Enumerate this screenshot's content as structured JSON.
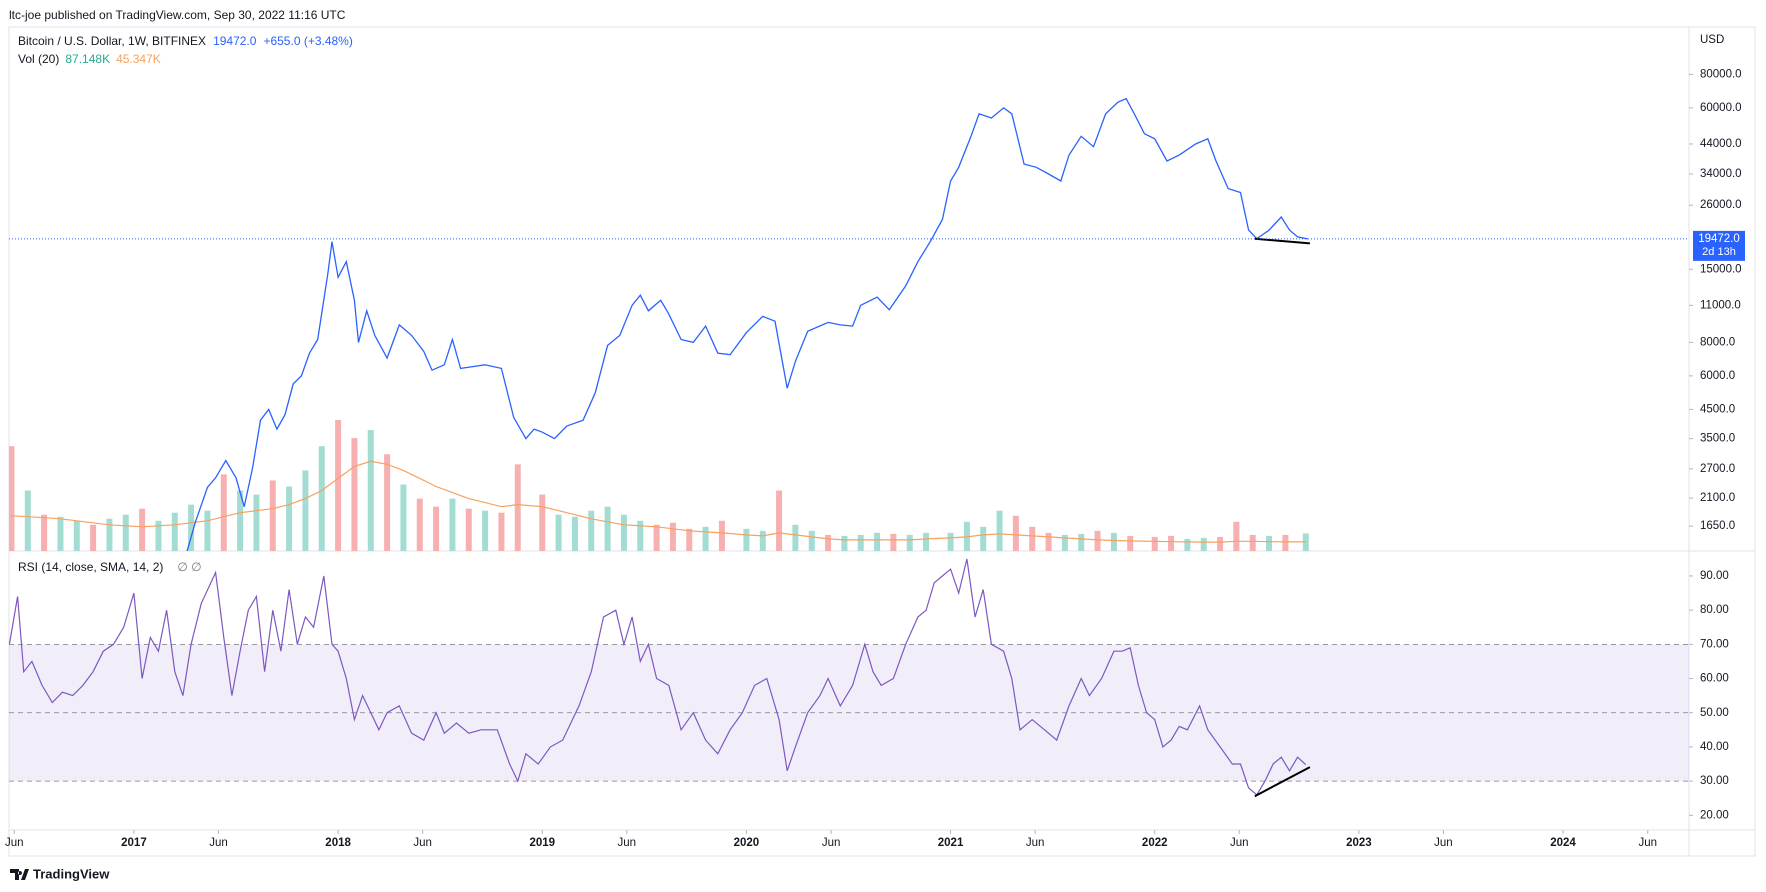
{
  "header": {
    "publisher": "ltc-joe published on TradingView.com, Sep 30, 2022 11:16 UTC",
    "brand": "TradingView"
  },
  "chart_data": [
    {
      "type": "line",
      "title": "Bitcoin / U.S. Dollar, 1W, BITFINEX",
      "color": "#2962ff",
      "log_scale": true,
      "y_unit": "USD",
      "last_value": 19472,
      "last_value_label": "19472.0",
      "change_label": "+655.0 (+3.48%)",
      "countdown": "2d 13h",
      "xlim": [
        2016.388,
        2024.617
      ],
      "ylim": [
        1333,
        120200
      ],
      "yticks": [
        {
          "value": 1650,
          "label": "1650.0"
        },
        {
          "value": 2100,
          "label": "2100.0"
        },
        {
          "value": 2700,
          "label": "2700.0"
        },
        {
          "value": 3500,
          "label": "3500.0"
        },
        {
          "value": 4500,
          "label": "4500.0"
        },
        {
          "value": 6000,
          "label": "6000.0"
        },
        {
          "value": 8000,
          "label": "8000.0"
        },
        {
          "value": 11000,
          "label": "11000.0"
        },
        {
          "value": 15000,
          "label": "15000.0"
        },
        {
          "value": 26000,
          "label": "26000.0"
        },
        {
          "value": 34000,
          "label": "34000.0"
        },
        {
          "value": 44000,
          "label": "44000.0"
        },
        {
          "value": 60000,
          "label": "60000.0"
        },
        {
          "value": 80000,
          "label": "80000.0"
        }
      ],
      "x": [
        2017.25,
        2017.3,
        2017.36,
        2017.4,
        2017.45,
        2017.5,
        2017.54,
        2017.58,
        2017.62,
        2017.66,
        2017.7,
        2017.74,
        2017.78,
        2017.82,
        2017.86,
        2017.9,
        2017.95,
        2017.97,
        2018.0,
        2018.04,
        2018.08,
        2018.1,
        2018.14,
        2018.18,
        2018.24,
        2018.3,
        2018.36,
        2018.42,
        2018.46,
        2018.52,
        2018.56,
        2018.6,
        2018.66,
        2018.72,
        2018.8,
        2018.86,
        2018.92,
        2018.96,
        2019.0,
        2019.06,
        2019.12,
        2019.2,
        2019.26,
        2019.32,
        2019.38,
        2019.44,
        2019.48,
        2019.52,
        2019.58,
        2019.62,
        2019.68,
        2019.74,
        2019.8,
        2019.86,
        2019.92,
        2020.0,
        2020.08,
        2020.14,
        2020.2,
        2020.24,
        2020.3,
        2020.4,
        2020.46,
        2020.52,
        2020.56,
        2020.64,
        2020.7,
        2020.78,
        2020.84,
        2020.9,
        2020.96,
        2021.0,
        2021.04,
        2021.1,
        2021.14,
        2021.2,
        2021.26,
        2021.3,
        2021.36,
        2021.42,
        2021.48,
        2021.54,
        2021.58,
        2021.64,
        2021.7,
        2021.76,
        2021.82,
        2021.86,
        2021.9,
        2021.95,
        2022.0,
        2022.06,
        2022.12,
        2022.2,
        2022.26,
        2022.3,
        2022.36,
        2022.42,
        2022.46,
        2022.5,
        2022.56,
        2022.62,
        2022.66,
        2022.7,
        2022.75
      ],
      "values": [
        1250,
        1700,
        2300,
        2500,
        2900,
        2500,
        1950,
        2700,
        4100,
        4500,
        3800,
        4300,
        5600,
        6000,
        7300,
        8200,
        14500,
        19000,
        14000,
        16000,
        11500,
        8000,
        10500,
        8500,
        7000,
        9300,
        8500,
        7400,
        6300,
        6600,
        8200,
        6400,
        6500,
        6600,
        6400,
        4200,
        3500,
        3800,
        3700,
        3500,
        3900,
        4100,
        5200,
        7800,
        8500,
        11000,
        12000,
        10500,
        11500,
        10200,
        8200,
        8000,
        9200,
        7300,
        7200,
        8700,
        10000,
        9600,
        5400,
        6800,
        8800,
        9500,
        9300,
        9200,
        11000,
        11800,
        10600,
        13000,
        16000,
        19000,
        23000,
        32000,
        36000,
        47000,
        57000,
        55000,
        60000,
        57000,
        37000,
        36000,
        34000,
        32000,
        40000,
        47000,
        43000,
        57000,
        63000,
        65000,
        57000,
        48000,
        46000,
        38000,
        40000,
        44000,
        46000,
        38000,
        30000,
        29000,
        21000,
        19500,
        21000,
        23500,
        21000,
        19800,
        19472
      ],
      "volume": {
        "name": "Vol (20)",
        "ylim": [
          0,
          780
        ],
        "last_label": "87.148K",
        "label_color": "#22ab94",
        "x": [
          2016.4,
          2016.48,
          2016.56,
          2016.64,
          2016.72,
          2016.8,
          2016.88,
          2016.96,
          2017.04,
          2017.12,
          2017.2,
          2017.28,
          2017.36,
          2017.44,
          2017.52,
          2017.6,
          2017.68,
          2017.76,
          2017.84,
          2017.92,
          2018.0,
          2018.08,
          2018.16,
          2018.24,
          2018.32,
          2018.4,
          2018.48,
          2018.56,
          2018.64,
          2018.72,
          2018.8,
          2018.88,
          2019.0,
          2019.08,
          2019.16,
          2019.24,
          2019.32,
          2019.4,
          2019.48,
          2019.56,
          2019.64,
          2019.72,
          2019.8,
          2019.88,
          2020.0,
          2020.08,
          2020.16,
          2020.24,
          2020.32,
          2020.4,
          2020.48,
          2020.56,
          2020.64,
          2020.72,
          2020.8,
          2020.88,
          2021.0,
          2021.08,
          2021.16,
          2021.24,
          2021.32,
          2021.4,
          2021.48,
          2021.56,
          2021.64,
          2021.72,
          2021.8,
          2021.88,
          2022.0,
          2022.08,
          2022.16,
          2022.24,
          2022.32,
          2022.4,
          2022.48,
          2022.56,
          2022.64,
          2022.74
        ],
        "values": [
          520,
          300,
          180,
          170,
          150,
          130,
          160,
          180,
          210,
          150,
          190,
          230,
          200,
          380,
          300,
          280,
          350,
          320,
          400,
          520,
          650,
          560,
          600,
          480,
          330,
          260,
          220,
          260,
          210,
          200,
          190,
          430,
          280,
          180,
          170,
          200,
          220,
          180,
          150,
          130,
          140,
          110,
          120,
          150,
          110,
          100,
          300,
          130,
          100,
          80,
          75,
          80,
          90,
          85,
          80,
          90,
          90,
          145,
          120,
          200,
          175,
          120,
          90,
          80,
          85,
          100,
          90,
          75,
          70,
          75,
          60,
          65,
          70,
          145,
          80,
          75,
          80,
          87.148
        ],
        "colors": [
          "#f6b0b0",
          "#a3dcd3",
          "#f6b0b0",
          "#a3dcd3",
          "#a3dcd3",
          "#f6b0b0",
          "#a3dcd3",
          "#a3dcd3",
          "#f6b0b0",
          "#a3dcd3",
          "#a3dcd3",
          "#a3dcd3",
          "#a3dcd3",
          "#f6b0b0",
          "#a3dcd3",
          "#a3dcd3",
          "#f6b0b0",
          "#a3dcd3",
          "#a3dcd3",
          "#a3dcd3",
          "#f6b0b0",
          "#f6b0b0",
          "#a3dcd3",
          "#f6b0b0",
          "#a3dcd3",
          "#f6b0b0",
          "#f6b0b0",
          "#a3dcd3",
          "#f6b0b0",
          "#a3dcd3",
          "#f6b0b0",
          "#f6b0b0",
          "#f6b0b0",
          "#a3dcd3",
          "#a3dcd3",
          "#a3dcd3",
          "#a3dcd3",
          "#a3dcd3",
          "#a3dcd3",
          "#f6b0b0",
          "#f6b0b0",
          "#f6b0b0",
          "#a3dcd3",
          "#f6b0b0",
          "#a3dcd3",
          "#a3dcd3",
          "#f6b0b0",
          "#a3dcd3",
          "#a3dcd3",
          "#f6b0b0",
          "#a3dcd3",
          "#a3dcd3",
          "#a3dcd3",
          "#f6b0b0",
          "#a3dcd3",
          "#a3dcd3",
          "#a3dcd3",
          "#a3dcd3",
          "#a3dcd3",
          "#a3dcd3",
          "#f6b0b0",
          "#f6b0b0",
          "#f6b0b0",
          "#a3dcd3",
          "#a3dcd3",
          "#f6b0b0",
          "#a3dcd3",
          "#f6b0b0",
          "#f6b0b0",
          "#f6b0b0",
          "#a3dcd3",
          "#a3dcd3",
          "#f6b0b0",
          "#f6b0b0",
          "#f6b0b0",
          "#a3dcd3",
          "#f6b0b0",
          "#a3dcd3"
        ],
        "ma": {
          "color": "#f7a15d",
          "last_label": "45.347K",
          "values": [
            175,
            170,
            165,
            160,
            150,
            140,
            130,
            125,
            120,
            125,
            130,
            140,
            150,
            170,
            190,
            200,
            210,
            230,
            260,
            300,
            360,
            420,
            445,
            430,
            400,
            360,
            320,
            290,
            260,
            240,
            220,
            230,
            220,
            200,
            180,
            160,
            145,
            130,
            125,
            120,
            110,
            100,
            95,
            90,
            80,
            75,
            90,
            80,
            70,
            60,
            55,
            55,
            55,
            55,
            55,
            60,
            65,
            70,
            80,
            85,
            80,
            75,
            70,
            65,
            60,
            55,
            52,
            50,
            48,
            46,
            45,
            44,
            44,
            48,
            48,
            46,
            45,
            45.347
          ]
        }
      },
      "drawings": [
        {
          "x": [
            2022.49,
            2022.76
          ],
          "y": [
            19500,
            18730
          ]
        }
      ]
    },
    {
      "type": "line",
      "title": "RSI (14, close, SMA, 14, 2)",
      "symbols": "∅ ∅",
      "color": "#7e57c2",
      "xlim": [
        2016.388,
        2024.617
      ],
      "ylim": [
        15.7,
        97.3
      ],
      "levels": [
        70,
        50,
        30
      ],
      "band": [
        30,
        70
      ],
      "yticks": [
        {
          "value": 20,
          "label": "20.00"
        },
        {
          "value": 30,
          "label": "30.00"
        },
        {
          "value": 40,
          "label": "40.00"
        },
        {
          "value": 50,
          "label": "50.00"
        },
        {
          "value": 60,
          "label": "60.00"
        },
        {
          "value": 70,
          "label": "70.00"
        },
        {
          "value": 80,
          "label": "80.00"
        },
        {
          "value": 90,
          "label": "90.00"
        }
      ],
      "xticks": [
        {
          "value": 2016.414,
          "label": "Jun"
        },
        2017,
        {
          "value": 2017.414,
          "label": "Jun"
        },
        2018,
        {
          "value": 2018.414,
          "label": "Jun"
        },
        2019,
        {
          "value": 2019.414,
          "label": "Jun"
        },
        2020,
        {
          "value": 2020.415,
          "label": "Jun"
        },
        2021,
        {
          "value": 2021.414,
          "label": "Jun"
        },
        2022,
        {
          "value": 2022.414,
          "label": "Jun"
        },
        2023,
        {
          "value": 2023.414,
          "label": "Jun"
        },
        2024,
        {
          "value": 2024.415,
          "label": "Jun"
        }
      ],
      "x": [
        2016.39,
        2016.43,
        2016.46,
        2016.5,
        2016.55,
        2016.6,
        2016.65,
        2016.7,
        2016.75,
        2016.8,
        2016.85,
        2016.9,
        2016.95,
        2017.0,
        2017.04,
        2017.08,
        2017.12,
        2017.16,
        2017.2,
        2017.24,
        2017.28,
        2017.33,
        2017.4,
        2017.44,
        2017.48,
        2017.52,
        2017.56,
        2017.6,
        2017.64,
        2017.68,
        2017.72,
        2017.76,
        2017.8,
        2017.84,
        2017.88,
        2017.93,
        2017.97,
        2018.0,
        2018.04,
        2018.08,
        2018.12,
        2018.16,
        2018.2,
        2018.24,
        2018.3,
        2018.36,
        2018.42,
        2018.48,
        2018.52,
        2018.58,
        2018.64,
        2018.7,
        2018.78,
        2018.84,
        2018.88,
        2018.92,
        2018.98,
        2019.04,
        2019.1,
        2019.18,
        2019.24,
        2019.3,
        2019.36,
        2019.4,
        2019.44,
        2019.48,
        2019.52,
        2019.56,
        2019.62,
        2019.68,
        2019.74,
        2019.8,
        2019.86,
        2019.92,
        2019.98,
        2020.04,
        2020.1,
        2020.16,
        2020.2,
        2020.24,
        2020.3,
        2020.36,
        2020.4,
        2020.46,
        2020.52,
        2020.58,
        2020.62,
        2020.66,
        2020.72,
        2020.78,
        2020.84,
        2020.88,
        2020.92,
        2020.96,
        2021.0,
        2021.04,
        2021.08,
        2021.12,
        2021.16,
        2021.2,
        2021.26,
        2021.3,
        2021.34,
        2021.4,
        2021.46,
        2021.52,
        2021.58,
        2021.64,
        2021.68,
        2021.74,
        2021.8,
        2021.84,
        2021.88,
        2021.92,
        2021.96,
        2022.0,
        2022.04,
        2022.08,
        2022.12,
        2022.16,
        2022.22,
        2022.26,
        2022.32,
        2022.38,
        2022.42,
        2022.46,
        2022.5,
        2022.54,
        2022.58,
        2022.62,
        2022.66,
        2022.7,
        2022.74
      ],
      "values": [
        70,
        84,
        62,
        65,
        58,
        53,
        56,
        55,
        58,
        62,
        68,
        70,
        75,
        85,
        60,
        72,
        68,
        80,
        62,
        55,
        70,
        82,
        91,
        72,
        55,
        68,
        80,
        84,
        62,
        80,
        68,
        86,
        70,
        78,
        75,
        90,
        70,
        68,
        60,
        48,
        55,
        50,
        45,
        50,
        52,
        44,
        42,
        50,
        44,
        47,
        44,
        45,
        45,
        35,
        30,
        38,
        35,
        40,
        42,
        52,
        62,
        78,
        80,
        70,
        78,
        65,
        70,
        60,
        58,
        45,
        50,
        42,
        38,
        45,
        50,
        58,
        60,
        48,
        33,
        40,
        50,
        55,
        60,
        52,
        58,
        70,
        62,
        58,
        60,
        70,
        78,
        80,
        88,
        90,
        92,
        85,
        95,
        78,
        86,
        70,
        68,
        60,
        45,
        48,
        45,
        42,
        52,
        60,
        55,
        60,
        68,
        68,
        69,
        58,
        50,
        48,
        40,
        42,
        46,
        45,
        52,
        45,
        40,
        35,
        35,
        28,
        26,
        30,
        35,
        37,
        33,
        37,
        34.79
      ],
      "drawings": [
        {
          "x": [
            2022.49,
            2022.76
          ],
          "y": [
            25.6,
            34.1
          ]
        }
      ]
    }
  ]
}
